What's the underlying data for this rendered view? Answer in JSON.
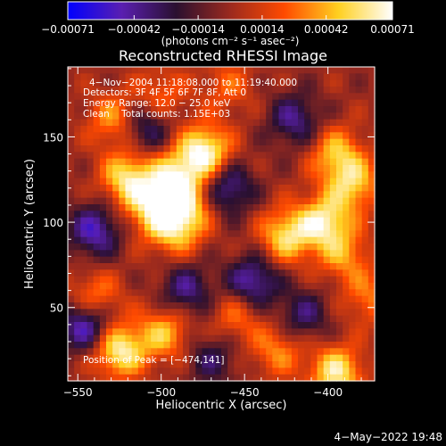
{
  "chart_data": {
    "type": "heatmap",
    "title": "Reconstructed RHESSI Image",
    "xlabel": "Heliocentric X (arcsec)",
    "ylabel": "Heliocentric Y (arcsec)",
    "xlim": [
      -556,
      -372
    ],
    "ylim": [
      7,
      191
    ],
    "x_ticks": [
      -550,
      -500,
      -450,
      -400
    ],
    "x_tick_labels": [
      "−550",
      "−500",
      "−450",
      "−400"
    ],
    "y_ticks": [
      50,
      100,
      150
    ],
    "y_tick_labels": [
      "50",
      "100",
      "150"
    ],
    "colorbar": {
      "label": "(photons cm⁻² s⁻¹ asec⁻²)",
      "range": [
        -0.00071,
        0.00071
      ],
      "ticks": [
        -0.00071,
        -0.00042,
        -0.00014,
        0.00014,
        0.00042,
        0.00071
      ],
      "tick_labels": [
        "−0.00071",
        "−0.00042",
        "−0.00014",
        "0.00014",
        "0.00042",
        "0.00071"
      ],
      "colors": [
        "#0000ff",
        "#5a1fb0",
        "#2a1030",
        "#9b2a1e",
        "#ff4a00",
        "#ffd020",
        "#ffffff"
      ]
    },
    "annotations": [
      "4−Nov−2004 11:18:08.000 to 11:19:40.000",
      "Detectors: 3F 4F 5F 6F 7F 8F, Att 0",
      "Energy Range: 12.0 − 25.0 keV",
      "Clean    Total counts: 1.15E+03"
    ],
    "peak_label": "Position of Peak = [−474,141]",
    "peak": [
      -474,
      141
    ],
    "sources": [
      {
        "x": -474,
        "y": 141,
        "value": 0.00071
      },
      {
        "x": -492,
        "y": 126,
        "value": 0.00055
      },
      {
        "x": -520,
        "y": 126,
        "value": 0.00058
      },
      {
        "x": -505,
        "y": 108,
        "value": 0.0005
      },
      {
        "x": -485,
        "y": 108,
        "value": 0.00045
      },
      {
        "x": -492,
        "y": 95,
        "value": 0.0004
      },
      {
        "x": -528,
        "y": 160,
        "value": 0.0004
      },
      {
        "x": -500,
        "y": 175,
        "value": 0.00028
      },
      {
        "x": -395,
        "y": 140,
        "value": 0.00045
      },
      {
        "x": -385,
        "y": 122,
        "value": 0.00048
      },
      {
        "x": -402,
        "y": 100,
        "value": 0.0006
      },
      {
        "x": -425,
        "y": 92,
        "value": 0.00055
      },
      {
        "x": -390,
        "y": 80,
        "value": 0.00035
      },
      {
        "x": -540,
        "y": 55,
        "value": 0.0004
      },
      {
        "x": -525,
        "y": 25,
        "value": 0.00065
      },
      {
        "x": -498,
        "y": 35,
        "value": 0.00045
      },
      {
        "x": -455,
        "y": 45,
        "value": 0.0003
      },
      {
        "x": -395,
        "y": 12,
        "value": 0.0006
      },
      {
        "x": -430,
        "y": 25,
        "value": 0.00035
      },
      {
        "x": -375,
        "y": 55,
        "value": 0.0003
      },
      {
        "x": -460,
        "y": 180,
        "value": 0.00025
      },
      {
        "x": -540,
        "y": 95,
        "value": -0.0005
      },
      {
        "x": -460,
        "y": 120,
        "value": -0.00045
      },
      {
        "x": -545,
        "y": 40,
        "value": -0.0006
      },
      {
        "x": -445,
        "y": 65,
        "value": -0.0005
      },
      {
        "x": -510,
        "y": 155,
        "value": -0.0004
      },
      {
        "x": -420,
        "y": 160,
        "value": -0.0004
      },
      {
        "x": -485,
        "y": 60,
        "value": -0.0004
      },
      {
        "x": -415,
        "y": 45,
        "value": -0.00035
      },
      {
        "x": -470,
        "y": 20,
        "value": -0.0003
      }
    ]
  },
  "footer": {
    "date": "4−May−2022 19:48"
  }
}
